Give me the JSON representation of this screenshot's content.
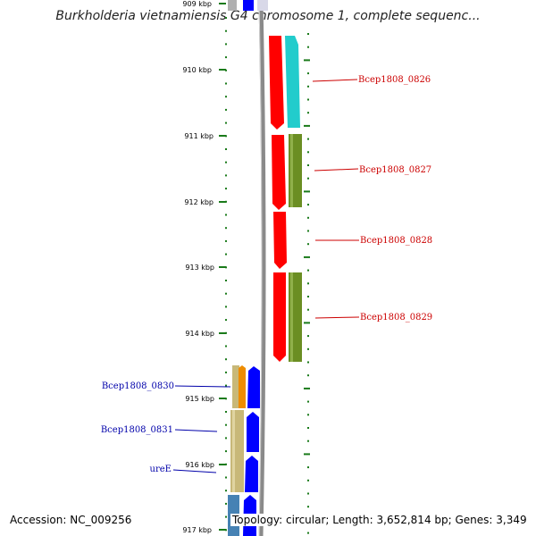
{
  "title": "Burkholderia vietnamiensis G4 chromosome 1, complete sequenc...",
  "accession": "Accession: NC_009256",
  "summary": "Topology: circular; Length: 3,652,814 bp; Genes: 3,349",
  "colors": {
    "backbone": "#8a8a8a",
    "tick_green": "#1a7a1a",
    "label_red": "#cc0000",
    "label_blue": "#0000aa",
    "red_gene": "#ff0000",
    "cyan_gene": "#22cccc",
    "olive_gene": "#6b8e23",
    "blue_gene": "#0000ff",
    "tan_gene": "#c8b878",
    "orange_gene": "#ee8c00",
    "steel_gene": "#4682b4"
  },
  "scale": {
    "ticks": [
      {
        "label": "909 kbp"
      },
      {
        "label": "910 kbp"
      },
      {
        "label": "911 kbp"
      },
      {
        "label": "912 kbp"
      },
      {
        "label": "913 kbp"
      },
      {
        "label": "914 kbp"
      },
      {
        "label": "915 kbp"
      },
      {
        "label": "916 kbp"
      },
      {
        "label": "917 kbp"
      }
    ]
  },
  "gene_labels": {
    "right": [
      "Bcep1808_0826",
      "Bcep1808_0827",
      "Bcep1808_0828",
      "Bcep1808_0829"
    ],
    "left": [
      "Bcep1808_0830",
      "Bcep1808_0831",
      "ureE"
    ]
  }
}
